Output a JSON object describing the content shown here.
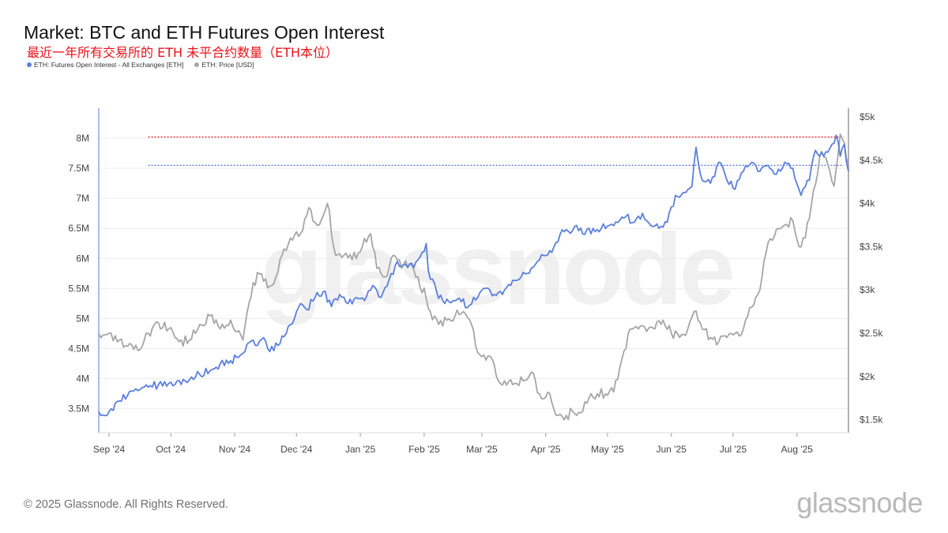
{
  "header": {
    "title": "Market: BTC and ETH Futures Open Interest",
    "subtitle": "最近一年所有交易所的 ETH 未平合约数量（ETH本位）"
  },
  "footer": {
    "copyright": "© 2025 Glassnode. All Rights Reserved.",
    "brand": "glassnode"
  },
  "watermark": "glassnode",
  "colors": {
    "oi": "#5b7fdb",
    "price": "#a5a5a5",
    "red_ref": "#e8121b",
    "blue_ref": "#3b5ccc"
  },
  "chart_data": {
    "type": "line",
    "title": "Market: BTC and ETH Futures Open Interest",
    "x_range": [
      "2024-08-27",
      "2025-08-26"
    ],
    "x_ticks": [
      "Sep '24",
      "Oct '24",
      "Nov '24",
      "Dec '24",
      "Jan '25",
      "Feb '25",
      "Mar '25",
      "Apr '25",
      "May '25",
      "Jun '25",
      "Jul '25",
      "Aug '25"
    ],
    "y_left": {
      "min": 3.1,
      "max": 8.5,
      "unit": "M",
      "ticks": [
        "3.5M",
        "4M",
        "4.5M",
        "5M",
        "5.5M",
        "6M",
        "6.5M",
        "7M",
        "7.5M",
        "8M"
      ]
    },
    "y_right": {
      "min": 1.35,
      "max": 5.1,
      "unit": "k USD",
      "ticks": [
        "$1.5k",
        "$2k",
        "$2.5k",
        "$3k",
        "$3.5k",
        "$4k",
        "$4.5k",
        "$5k"
      ]
    },
    "reference_lines": [
      {
        "axis": "left",
        "value": 8.02,
        "color": "red",
        "style": "dotted"
      },
      {
        "axis": "left",
        "value": 7.55,
        "color": "blue",
        "style": "dotted"
      }
    ],
    "series": [
      {
        "name": "ETH: Futures Open Interest - All Exchanges [ETH]",
        "axis": "left",
        "unit": "M ETH",
        "points": [
          [
            "2024-08-27",
            3.45
          ],
          [
            "2024-09-01",
            3.45
          ],
          [
            "2024-09-05",
            3.62
          ],
          [
            "2024-09-10",
            3.72
          ],
          [
            "2024-09-15",
            3.8
          ],
          [
            "2024-09-20",
            3.86
          ],
          [
            "2024-09-25",
            3.9
          ],
          [
            "2024-09-30",
            3.92
          ],
          [
            "2024-10-05",
            3.97
          ],
          [
            "2024-10-10",
            3.98
          ],
          [
            "2024-10-15",
            4.07
          ],
          [
            "2024-10-20",
            4.13
          ],
          [
            "2024-10-25",
            4.25
          ],
          [
            "2024-10-30",
            4.3
          ],
          [
            "2024-11-05",
            4.42
          ],
          [
            "2024-11-08",
            4.6
          ],
          [
            "2024-11-12",
            4.55
          ],
          [
            "2024-11-15",
            4.68
          ],
          [
            "2024-11-18",
            4.45
          ],
          [
            "2024-11-22",
            4.55
          ],
          [
            "2024-11-26",
            4.75
          ],
          [
            "2024-11-30",
            5.0
          ],
          [
            "2024-12-03",
            5.25
          ],
          [
            "2024-12-06",
            5.15
          ],
          [
            "2024-12-10",
            5.35
          ],
          [
            "2024-12-14",
            5.45
          ],
          [
            "2024-12-18",
            5.2
          ],
          [
            "2024-12-22",
            5.4
          ],
          [
            "2024-12-26",
            5.25
          ],
          [
            "2024-12-30",
            5.35
          ],
          [
            "2025-01-03",
            5.3
          ],
          [
            "2025-01-07",
            5.55
          ],
          [
            "2025-01-11",
            5.35
          ],
          [
            "2025-01-15",
            5.65
          ],
          [
            "2025-01-19",
            5.95
          ],
          [
            "2025-01-23",
            5.9
          ],
          [
            "2025-01-27",
            5.85
          ],
          [
            "2025-01-31",
            6.1
          ],
          [
            "2025-02-02",
            6.25
          ],
          [
            "2025-02-03",
            5.8
          ],
          [
            "2025-02-07",
            5.45
          ],
          [
            "2025-02-11",
            5.25
          ],
          [
            "2025-02-15",
            5.3
          ],
          [
            "2025-02-19",
            5.28
          ],
          [
            "2025-02-23",
            5.22
          ],
          [
            "2025-02-27",
            5.35
          ],
          [
            "2025-03-03",
            5.5
          ],
          [
            "2025-03-07",
            5.4
          ],
          [
            "2025-03-11",
            5.4
          ],
          [
            "2025-03-15",
            5.55
          ],
          [
            "2025-03-19",
            5.65
          ],
          [
            "2025-03-23",
            5.75
          ],
          [
            "2025-03-27",
            5.9
          ],
          [
            "2025-03-31",
            6.05
          ],
          [
            "2025-04-04",
            6.1
          ],
          [
            "2025-04-08",
            6.4
          ],
          [
            "2025-04-12",
            6.45
          ],
          [
            "2025-04-16",
            6.55
          ],
          [
            "2025-04-20",
            6.4
          ],
          [
            "2025-04-24",
            6.5
          ],
          [
            "2025-04-28",
            6.5
          ],
          [
            "2025-05-02",
            6.55
          ],
          [
            "2025-05-06",
            6.6
          ],
          [
            "2025-05-10",
            6.7
          ],
          [
            "2025-05-14",
            6.6
          ],
          [
            "2025-05-18",
            6.75
          ],
          [
            "2025-05-22",
            6.55
          ],
          [
            "2025-05-26",
            6.5
          ],
          [
            "2025-05-30",
            6.6
          ],
          [
            "2025-06-03",
            7.05
          ],
          [
            "2025-06-07",
            7.1
          ],
          [
            "2025-06-11",
            7.2
          ],
          [
            "2025-06-13",
            7.85
          ],
          [
            "2025-06-16",
            7.3
          ],
          [
            "2025-06-20",
            7.25
          ],
          [
            "2025-06-24",
            7.6
          ],
          [
            "2025-06-28",
            7.3
          ],
          [
            "2025-07-02",
            7.15
          ],
          [
            "2025-07-06",
            7.45
          ],
          [
            "2025-07-10",
            7.6
          ],
          [
            "2025-07-14",
            7.45
          ],
          [
            "2025-07-18",
            7.55
          ],
          [
            "2025-07-22",
            7.4
          ],
          [
            "2025-07-26",
            7.6
          ],
          [
            "2025-07-30",
            7.5
          ],
          [
            "2025-08-03",
            7.05
          ],
          [
            "2025-08-07",
            7.3
          ],
          [
            "2025-08-10",
            7.8
          ],
          [
            "2025-08-14",
            7.7
          ],
          [
            "2025-08-18",
            7.9
          ],
          [
            "2025-08-20",
            8.05
          ],
          [
            "2025-08-22",
            7.7
          ],
          [
            "2025-08-24",
            7.9
          ],
          [
            "2025-08-26",
            7.45
          ]
        ]
      },
      {
        "name": "ETH: Price [USD]",
        "axis": "right",
        "unit": "k USD",
        "points": [
          [
            "2024-08-27",
            2.5
          ],
          [
            "2024-09-01",
            2.5
          ],
          [
            "2024-09-05",
            2.4
          ],
          [
            "2024-09-10",
            2.35
          ],
          [
            "2024-09-15",
            2.3
          ],
          [
            "2024-09-20",
            2.5
          ],
          [
            "2024-09-25",
            2.62
          ],
          [
            "2024-09-30",
            2.55
          ],
          [
            "2024-10-05",
            2.4
          ],
          [
            "2024-10-10",
            2.42
          ],
          [
            "2024-10-15",
            2.6
          ],
          [
            "2024-10-20",
            2.7
          ],
          [
            "2024-10-25",
            2.55
          ],
          [
            "2024-10-30",
            2.65
          ],
          [
            "2024-11-05",
            2.42
          ],
          [
            "2024-11-08",
            2.85
          ],
          [
            "2024-11-12",
            3.2
          ],
          [
            "2024-11-15",
            3.1
          ],
          [
            "2024-11-19",
            3.05
          ],
          [
            "2024-11-24",
            3.4
          ],
          [
            "2024-11-28",
            3.6
          ],
          [
            "2024-12-03",
            3.65
          ],
          [
            "2024-12-07",
            3.95
          ],
          [
            "2024-12-11",
            3.75
          ],
          [
            "2024-12-16",
            4.0
          ],
          [
            "2024-12-20",
            3.4
          ],
          [
            "2024-12-24",
            3.4
          ],
          [
            "2024-12-28",
            3.35
          ],
          [
            "2025-01-02",
            3.5
          ],
          [
            "2025-01-06",
            3.65
          ],
          [
            "2025-01-09",
            3.25
          ],
          [
            "2025-01-13",
            3.15
          ],
          [
            "2025-01-17",
            3.4
          ],
          [
            "2025-01-21",
            3.25
          ],
          [
            "2025-01-25",
            3.3
          ],
          [
            "2025-01-29",
            3.15
          ],
          [
            "2025-02-02",
            2.9
          ],
          [
            "2025-02-04",
            2.75
          ],
          [
            "2025-02-08",
            2.6
          ],
          [
            "2025-02-12",
            2.65
          ],
          [
            "2025-02-16",
            2.7
          ],
          [
            "2025-02-20",
            2.75
          ],
          [
            "2025-02-24",
            2.6
          ],
          [
            "2025-02-26",
            2.35
          ],
          [
            "2025-03-02",
            2.25
          ],
          [
            "2025-03-06",
            2.2
          ],
          [
            "2025-03-09",
            1.95
          ],
          [
            "2025-03-13",
            1.9
          ],
          [
            "2025-03-17",
            1.92
          ],
          [
            "2025-03-21",
            1.95
          ],
          [
            "2025-03-25",
            2.05
          ],
          [
            "2025-03-29",
            1.8
          ],
          [
            "2025-04-03",
            1.8
          ],
          [
            "2025-04-07",
            1.55
          ],
          [
            "2025-04-10",
            1.5
          ],
          [
            "2025-04-14",
            1.6
          ],
          [
            "2025-04-18",
            1.58
          ],
          [
            "2025-04-22",
            1.75
          ],
          [
            "2025-04-26",
            1.8
          ],
          [
            "2025-04-30",
            1.8
          ],
          [
            "2025-05-04",
            1.82
          ],
          [
            "2025-05-08",
            2.2
          ],
          [
            "2025-05-12",
            2.55
          ],
          [
            "2025-05-16",
            2.55
          ],
          [
            "2025-05-20",
            2.52
          ],
          [
            "2025-05-24",
            2.55
          ],
          [
            "2025-05-28",
            2.65
          ],
          [
            "2025-06-01",
            2.5
          ],
          [
            "2025-06-05",
            2.45
          ],
          [
            "2025-06-09",
            2.55
          ],
          [
            "2025-06-12",
            2.75
          ],
          [
            "2025-06-16",
            2.55
          ],
          [
            "2025-06-20",
            2.45
          ],
          [
            "2025-06-24",
            2.4
          ],
          [
            "2025-06-28",
            2.45
          ],
          [
            "2025-07-02",
            2.5
          ],
          [
            "2025-07-06",
            2.55
          ],
          [
            "2025-07-10",
            2.8
          ],
          [
            "2025-07-14",
            3.0
          ],
          [
            "2025-07-18",
            3.55
          ],
          [
            "2025-07-22",
            3.7
          ],
          [
            "2025-07-26",
            3.75
          ],
          [
            "2025-07-30",
            3.8
          ],
          [
            "2025-08-02",
            3.5
          ],
          [
            "2025-08-05",
            3.6
          ],
          [
            "2025-08-09",
            4.15
          ],
          [
            "2025-08-13",
            4.6
          ],
          [
            "2025-08-16",
            4.45
          ],
          [
            "2025-08-19",
            4.2
          ],
          [
            "2025-08-22",
            4.8
          ],
          [
            "2025-08-24",
            4.7
          ],
          [
            "2025-08-26",
            4.45
          ]
        ]
      }
    ]
  }
}
